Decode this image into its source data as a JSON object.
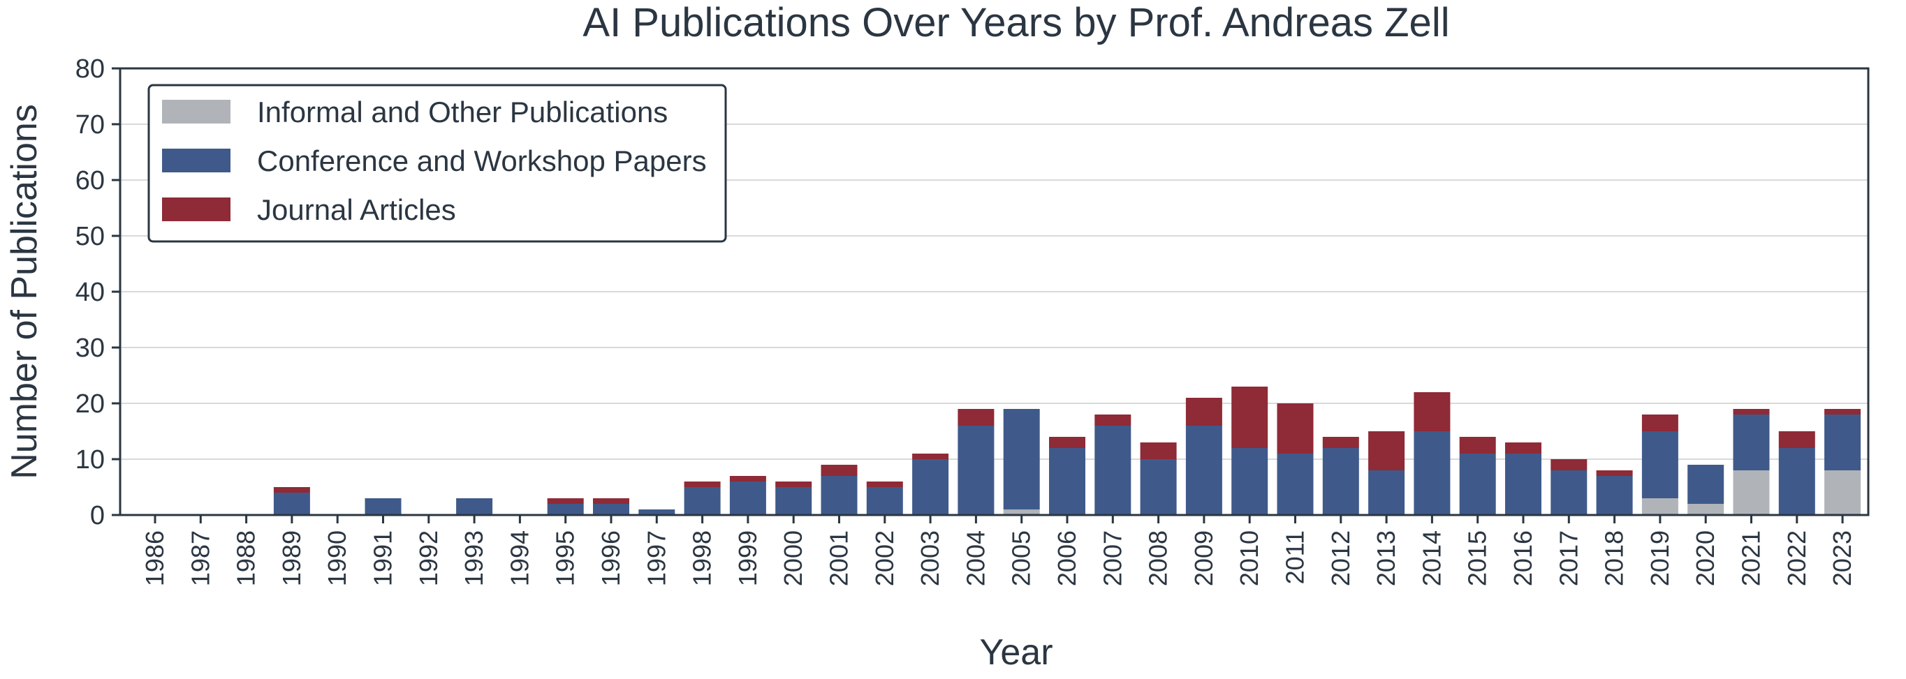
{
  "chart_data": {
    "type": "bar",
    "stacked": true,
    "title": "AI Publications Over Years by Prof. Andreas Zell",
    "xlabel": "Year",
    "ylabel": "Number of Publications",
    "ylim": [
      0,
      80
    ],
    "yticks": [
      "0",
      "10",
      "20",
      "30",
      "40",
      "50",
      "60",
      "70",
      "80"
    ],
    "grid": true,
    "legend_position": "top-left",
    "categories": [
      "1986",
      "1987",
      "1988",
      "1989",
      "1990",
      "1991",
      "1992",
      "1993",
      "1994",
      "1995",
      "1996",
      "1997",
      "1998",
      "1999",
      "2000",
      "2001",
      "2002",
      "2003",
      "2004",
      "2005",
      "2006",
      "2007",
      "2008",
      "2009",
      "2010",
      "2011",
      "2012",
      "2013",
      "2014",
      "2015",
      "2016",
      "2017",
      "2018",
      "2019",
      "2020",
      "2021",
      "2022",
      "2023"
    ],
    "series": [
      {
        "name": "Informal and Other Publications",
        "color": "#b0b3b8",
        "values": [
          0,
          0,
          0,
          0,
          0,
          0,
          0,
          0,
          0,
          0,
          0,
          0,
          0,
          0,
          0,
          0,
          0,
          0,
          0,
          1,
          0,
          0,
          0,
          0,
          0,
          0,
          0,
          0,
          0,
          0,
          0,
          0,
          0,
          3,
          2,
          8,
          0,
          8
        ]
      },
      {
        "name": "Conference and Workshop Papers",
        "color": "#3f5a8a",
        "values": [
          0,
          0,
          0,
          4,
          0,
          3,
          0,
          3,
          0,
          2,
          2,
          1,
          5,
          6,
          5,
          7,
          5,
          10,
          16,
          18,
          12,
          16,
          10,
          16,
          12,
          11,
          12,
          8,
          15,
          11,
          11,
          8,
          7,
          12,
          7,
          10,
          12,
          10
        ]
      },
      {
        "name": "Journal Articles",
        "color": "#8f2a37",
        "values": [
          0,
          0,
          0,
          1,
          0,
          0,
          0,
          0,
          0,
          1,
          1,
          0,
          1,
          1,
          1,
          2,
          1,
          1,
          3,
          0,
          2,
          2,
          3,
          5,
          11,
          9,
          2,
          7,
          7,
          3,
          2,
          2,
          1,
          3,
          0,
          1,
          3,
          1
        ]
      }
    ]
  }
}
